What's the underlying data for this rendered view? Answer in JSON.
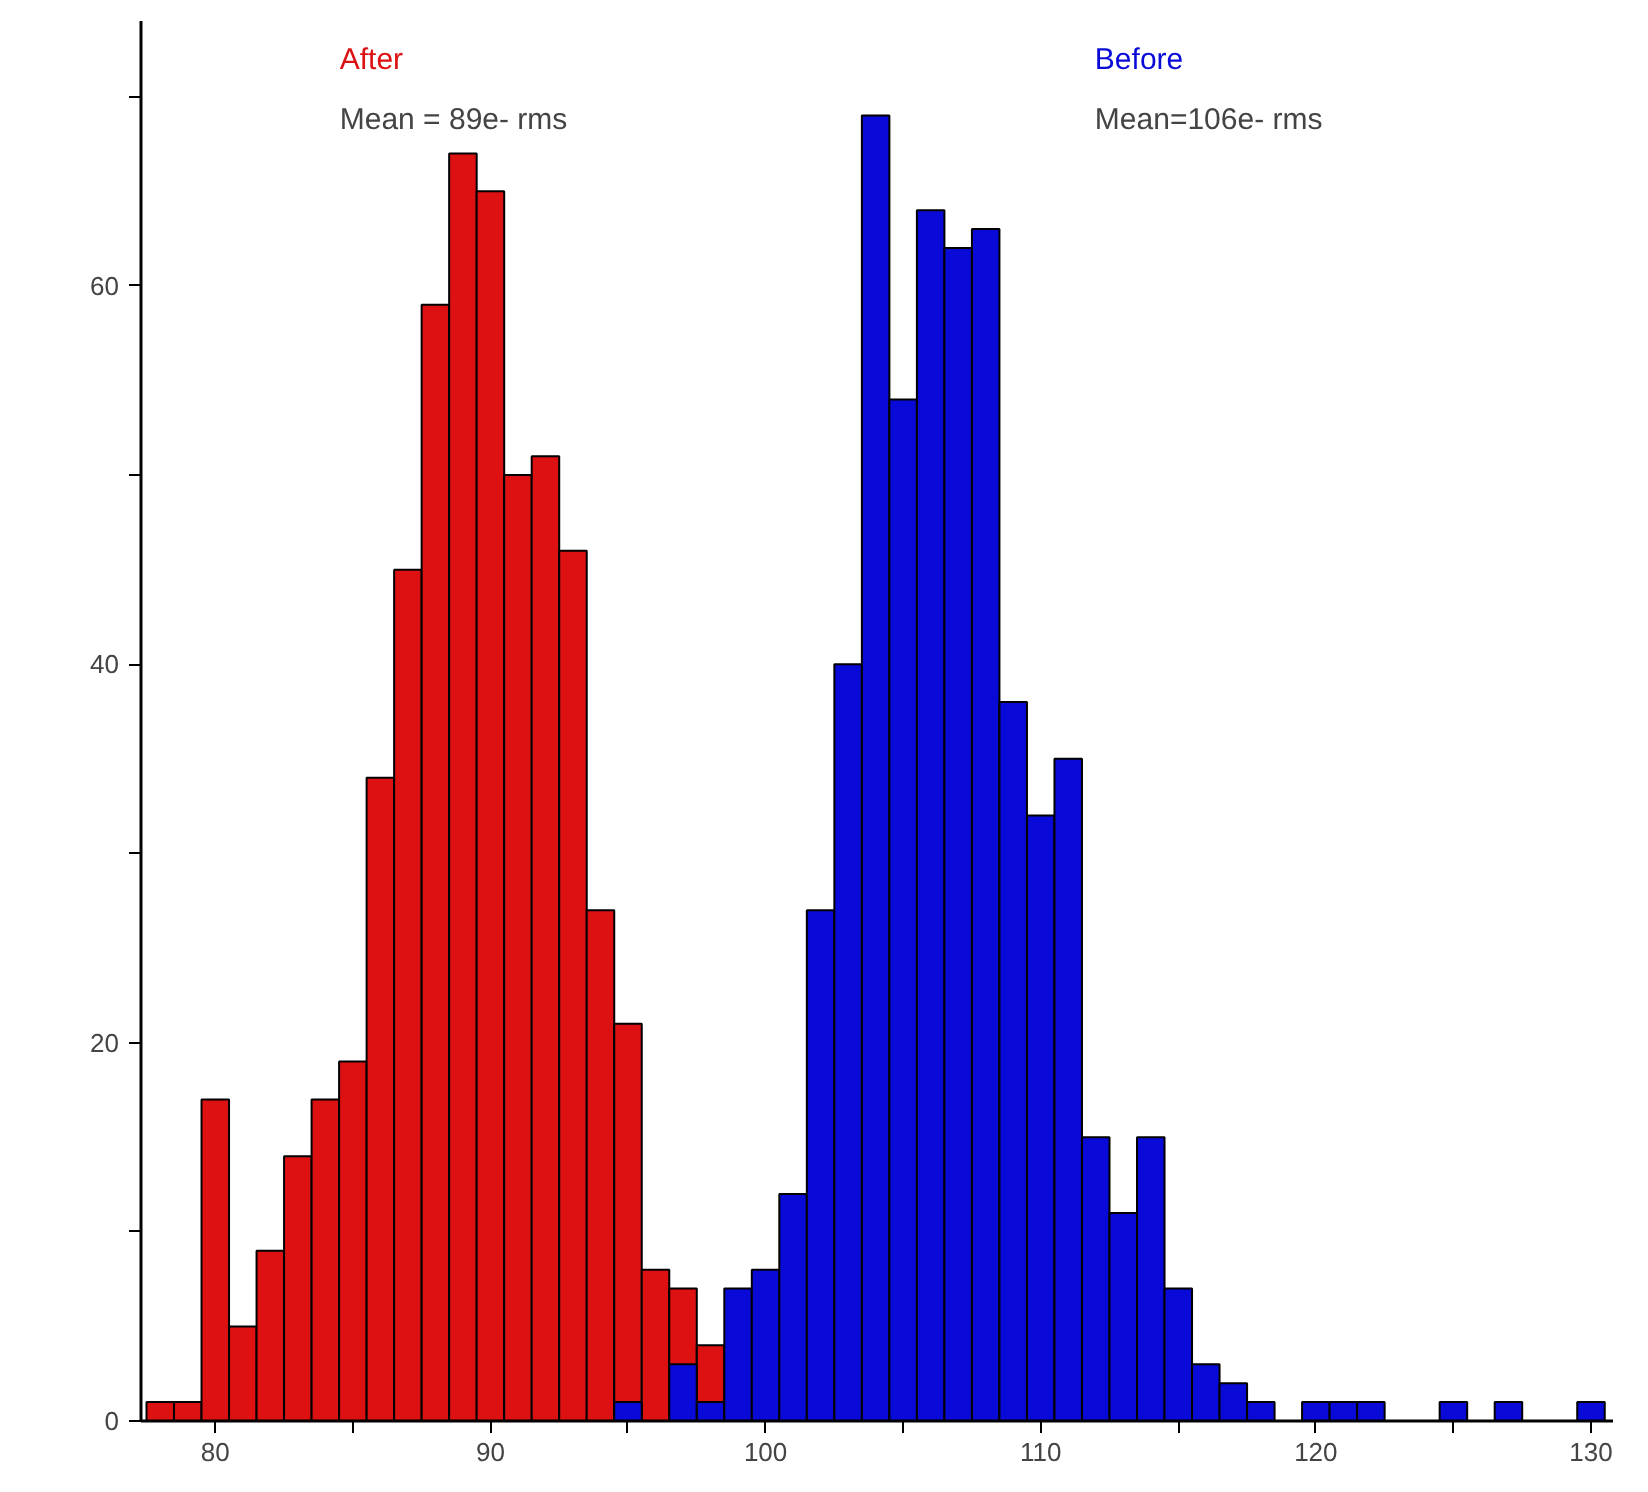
{
  "chart_data": {
    "type": "histogram",
    "bins": [
      77.5,
      78.5,
      79.5,
      80.5,
      81.5,
      82.5,
      83.5,
      84.5,
      85.5,
      86.5,
      87.5,
      88.5,
      89.5,
      90.5,
      91.5,
      92.5,
      93.5,
      94.5,
      95.5,
      96.5,
      97.5,
      98.5,
      99.5,
      100.5,
      101.5,
      102.5,
      103.5,
      104.5,
      105.5,
      106.5,
      107.5,
      108.5,
      109.5,
      110.5,
      111.5,
      112.5,
      113.5,
      114.5,
      115.5,
      116.5,
      117.5,
      118.5,
      119.5,
      120.5,
      121.5,
      122.5,
      123.5,
      124.5,
      125.5,
      126.5,
      127.5,
      128.5,
      129.5,
      130.5
    ],
    "series": [
      {
        "name": "After",
        "color": "#dd1111",
        "values": [
          1,
          1,
          17,
          5,
          9,
          14,
          17,
          19,
          34,
          45,
          59,
          67,
          65,
          50,
          51,
          46,
          27,
          21,
          8,
          7,
          4,
          null,
          null,
          null,
          null,
          null,
          null,
          null,
          null,
          null,
          null,
          null,
          null,
          null,
          null,
          null,
          null,
          null,
          null,
          null,
          null,
          null,
          null,
          null,
          null,
          null,
          null,
          null,
          null,
          null,
          null,
          null,
          null
        ]
      },
      {
        "name": "Before",
        "color": "#0a0ad8",
        "values": [
          null,
          null,
          null,
          null,
          null,
          null,
          null,
          null,
          null,
          null,
          null,
          null,
          null,
          null,
          null,
          null,
          null,
          1,
          0,
          3,
          1,
          7,
          8,
          12,
          27,
          40,
          69,
          54,
          64,
          62,
          63,
          38,
          32,
          35,
          15,
          11,
          15,
          7,
          3,
          2,
          1,
          0,
          1,
          1,
          1,
          0,
          0,
          1,
          0,
          1,
          0,
          0,
          1
        ]
      }
    ],
    "annotations": [
      "Mean = 89e- rms",
      "Mean=106e- rms"
    ],
    "xlim": [
      77.3,
      130.8
    ],
    "xticks": [
      80,
      {
        "value": 85,
        "label": null
      },
      90,
      {
        "value": 95,
        "label": null
      },
      100,
      {
        "value": 105,
        "label": null
      },
      110,
      {
        "value": 115,
        "label": null
      },
      120,
      {
        "value": 125,
        "label": null
      },
      130
    ],
    "ylim": [
      0,
      74
    ],
    "yticks": [
      0,
      {
        "value": 10,
        "label": null
      },
      20,
      {
        "value": 30,
        "label": null
      },
      40,
      {
        "value": 50,
        "label": null
      },
      60,
      {
        "value": 70,
        "label": null
      }
    ],
    "grid": false
  }
}
